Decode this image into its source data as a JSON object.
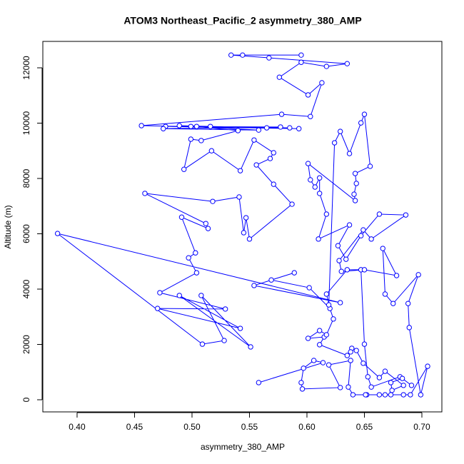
{
  "chart_data": {
    "type": "line",
    "marker": "circle",
    "title": "ATOM3 Northeast_Pacific_2 asymmetry_380_AMP",
    "x_label": "asymmetry_380_AMP",
    "y_label": "Altitude (m)",
    "xlim": [
      0.3702,
      0.7174
    ],
    "ylim": [
      -439,
      12955
    ],
    "xticks": [
      {
        "value": 0.4,
        "label": "0.40"
      },
      {
        "value": 0.45,
        "label": "0.45"
      },
      {
        "value": 0.5,
        "label": "0.50"
      },
      {
        "value": 0.55,
        "label": "0.55"
      },
      {
        "value": 0.6,
        "label": "0.60"
      },
      {
        "value": 0.65,
        "label": "0.65"
      },
      {
        "value": 0.7,
        "label": "0.70"
      }
    ],
    "yticks": [
      0,
      2000,
      4000,
      6000,
      8000,
      10000,
      12000
    ],
    "grid": false,
    "series": [
      {
        "color": "#0000ff",
        "x": [
          0.544,
          0.595,
          0.534,
          0.567,
          0.635,
          0.617,
          0.595,
          0.576,
          0.601,
          0.613,
          0.603,
          0.578,
          0.456,
          0.593,
          0.477,
          0.577,
          0.475,
          0.558,
          0.489,
          0.516,
          0.565,
          0.499,
          0.585,
          0.504,
          0.54,
          0.508,
          0.499,
          0.493,
          0.517,
          0.542,
          0.554,
          0.571,
          0.568,
          0.556,
          0.571,
          0.587,
          0.55,
          0.547,
          0.545,
          0.541,
          0.518,
          0.459,
          0.512,
          0.514,
          0.491,
          0.503,
          0.497,
          0.504,
          0.472,
          0.529,
          0.47,
          0.542,
          0.489,
          0.551,
          0.508,
          0.528,
          0.509,
          0.383,
          0.629,
          0.554,
          0.589,
          0.569,
          0.602,
          0.62,
          0.617,
          0.635,
          0.647,
          0.65,
          0.653,
          0.656,
          0.681,
          0.691,
          0.683,
          0.673,
          0.674,
          0.684,
          0.668,
          0.663,
          0.649,
          0.643,
          0.639,
          0.638,
          0.635,
          0.611,
          0.615,
          0.601,
          0.611,
          0.617,
          0.623,
          0.619,
          0.624,
          0.629,
          0.637,
          0.647,
          0.65,
          0.655,
          0.642,
          0.643,
          0.641,
          0.642,
          0.601,
          0.603,
          0.607,
          0.611,
          0.611,
          0.617,
          0.61,
          0.637,
          0.627,
          0.634,
          0.647,
          0.663,
          0.686,
          0.656,
          0.649,
          0.628,
          0.63,
          0.65,
          0.678,
          0.666,
          0.668,
          0.675,
          0.697,
          0.688,
          0.689,
          0.699,
          0.705,
          0.69,
          0.684,
          0.673,
          0.668,
          0.663,
          0.652,
          0.651,
          0.64,
          0.636,
          0.638,
          0.619,
          0.629,
          0.596,
          0.595,
          0.597,
          0.606,
          0.614,
          0.558
        ],
        "values": [
          12460,
          12460,
          12460,
          12360,
          12150,
          12050,
          12200,
          11660,
          11020,
          11460,
          10240,
          10320,
          9910,
          9800,
          9880,
          9860,
          9800,
          9750,
          9910,
          9880,
          9830,
          9880,
          9830,
          9880,
          9730,
          9370,
          9420,
          8330,
          9000,
          8280,
          9390,
          8930,
          8720,
          8490,
          7790,
          7070,
          5810,
          6580,
          6040,
          7330,
          7170,
          7460,
          6370,
          6190,
          6600,
          5310,
          5130,
          4590,
          3870,
          3280,
          3300,
          2580,
          3770,
          1910,
          3770,
          2140,
          2010,
          6010,
          3510,
          4130,
          4590,
          4330,
          4050,
          3300,
          3820,
          4700,
          4700,
          2010,
          830,
          460,
          830,
          520,
          770,
          620,
          340,
          520,
          1030,
          800,
          1320,
          1780,
          1860,
          1730,
          1600,
          1990,
          2270,
          2220,
          2500,
          2350,
          2920,
          3430,
          9290,
          9700,
          8900,
          10010,
          10320,
          8440,
          8180,
          7820,
          7430,
          7200,
          8540,
          7950,
          7690,
          8020,
          7460,
          6710,
          5810,
          6320,
          5570,
          5080,
          5930,
          6710,
          6680,
          5810,
          6140,
          5030,
          4640,
          4700,
          4490,
          5470,
          3820,
          3480,
          4520,
          3480,
          2610,
          180,
          1210,
          180,
          180,
          180,
          180,
          180,
          180,
          180,
          180,
          460,
          1420,
          1260,
          440,
          390,
          620,
          1140,
          1420,
          1340,
          620
        ]
      }
    ]
  }
}
